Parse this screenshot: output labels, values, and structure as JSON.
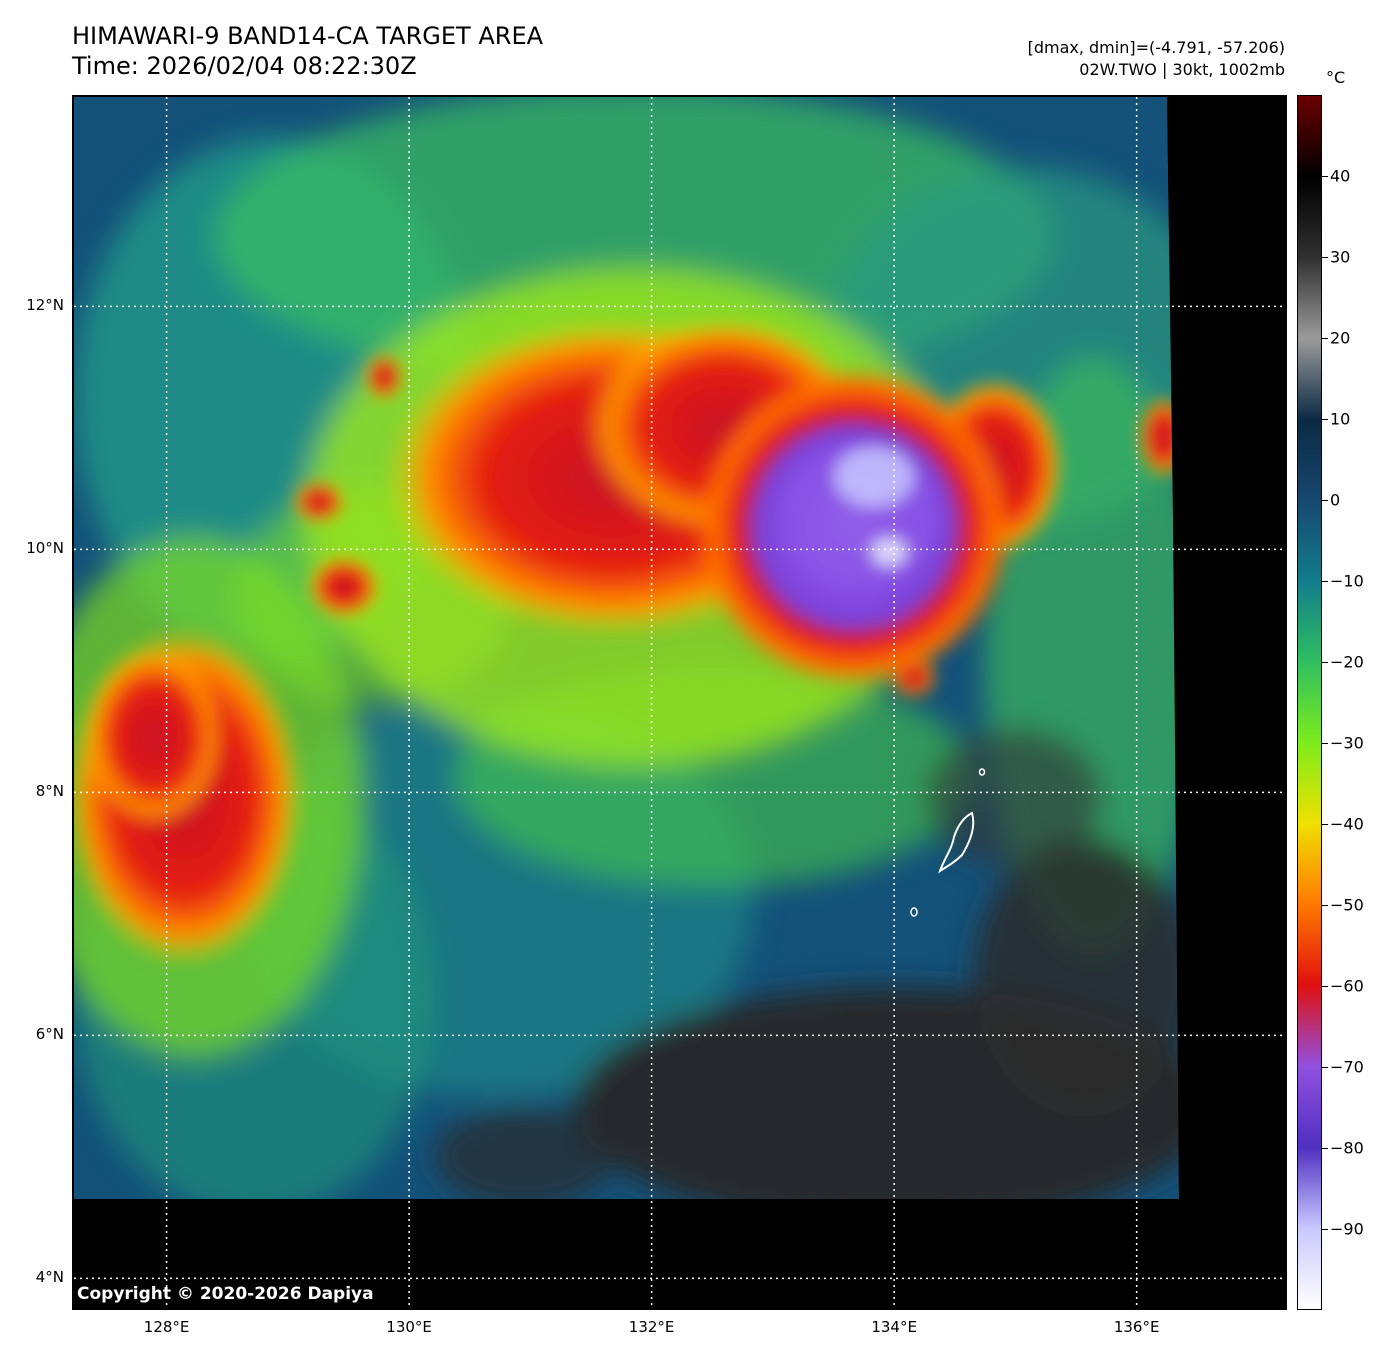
{
  "header": {
    "title": "HIMAWARI-9 BAND14-CA TARGET AREA",
    "time": "Time: 2026/02/04 08:22:30Z",
    "dmaxmin": "[dmax, dmin]=(-4.791, -57.206)",
    "storm": "02W.TWO | 30kt, 1002mb"
  },
  "axes": {
    "lat_labels": [
      {
        "text": "12°N",
        "lat": 12
      },
      {
        "text": "10°N",
        "lat": 10
      },
      {
        "text": "8°N",
        "lat": 8
      },
      {
        "text": "6°N",
        "lat": 6
      },
      {
        "text": "4°N",
        "lat": 4
      }
    ],
    "lon_labels": [
      {
        "text": "128°E",
        "lon": 128
      },
      {
        "text": "130°E",
        "lon": 130
      },
      {
        "text": "132°E",
        "lon": 132
      },
      {
        "text": "134°E",
        "lon": 134
      },
      {
        "text": "136°E",
        "lon": 136
      }
    ],
    "lon_range": [
      127.22,
      137.24
    ],
    "lat_range": [
      3.74,
      13.74
    ]
  },
  "colorbar": {
    "unit": "°C",
    "range": [
      -100,
      50
    ],
    "ticks": [
      {
        "text": "40",
        "value": 40
      },
      {
        "text": "30",
        "value": 30
      },
      {
        "text": "20",
        "value": 20
      },
      {
        "text": "10",
        "value": 10
      },
      {
        "text": "0",
        "value": 0
      },
      {
        "text": "−10",
        "value": -10
      },
      {
        "text": "−20",
        "value": -20
      },
      {
        "text": "−30",
        "value": -30
      },
      {
        "text": "−40",
        "value": -40
      },
      {
        "text": "−50",
        "value": -50
      },
      {
        "text": "−60",
        "value": -60
      },
      {
        "text": "−70",
        "value": -70
      },
      {
        "text": "−80",
        "value": -80
      },
      {
        "text": "−90",
        "value": -90
      }
    ],
    "colors": [
      "#6b0000",
      "#000000",
      "#303030",
      "#9a9a9a",
      "#0b2a44",
      "#17476e",
      "#127d8c",
      "#2fbf60",
      "#7dec1c",
      "#f0e000",
      "#ff7800",
      "#e01010",
      "#9050e0",
      "#5030c0",
      "#c8c8ff",
      "#ffffff"
    ]
  },
  "copyright": "Copyright © 2020-2026 Dapiya"
}
